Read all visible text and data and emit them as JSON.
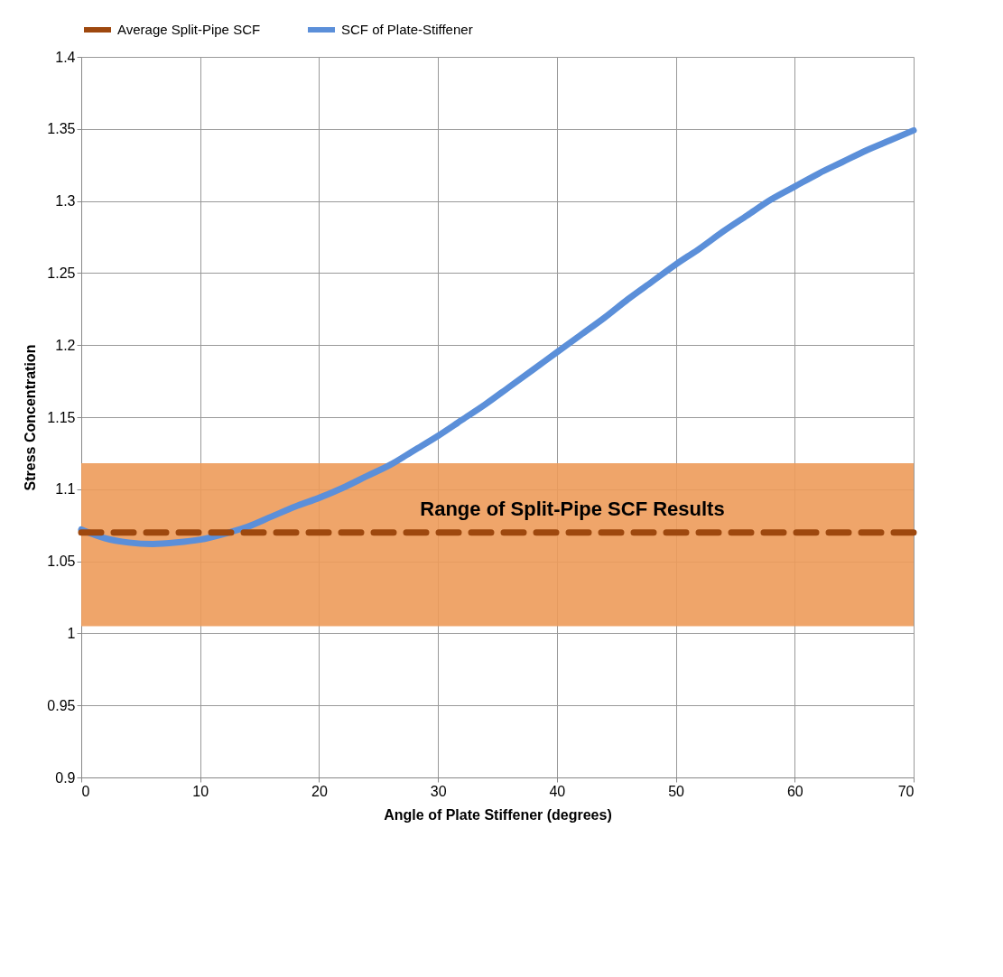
{
  "chart_data": {
    "type": "line",
    "xlabel": "Angle of Plate Stiffener (degrees)",
    "ylabel": "Stress Concentration",
    "xlim": [
      0,
      70
    ],
    "xticks": [
      0,
      10,
      20,
      30,
      40,
      50,
      60,
      70
    ],
    "ylim": [
      0.9,
      1.4
    ],
    "yticks": [
      0.9,
      0.95,
      1,
      1.05,
      1.1,
      1.15,
      1.2,
      1.25,
      1.3,
      1.35,
      1.4
    ],
    "grid": true,
    "legend": "top",
    "x": [
      0,
      2,
      4,
      6,
      8,
      10,
      12,
      14,
      16,
      18,
      20,
      22,
      24,
      26,
      28,
      30,
      32,
      34,
      36,
      38,
      40,
      42,
      44,
      46,
      48,
      50,
      52,
      54,
      56,
      58,
      60,
      62,
      64,
      66,
      68,
      70
    ],
    "series": [
      {
        "name": "SCF of Plate-Stiffener",
        "color": "#5b8fd9",
        "values": [
          1.072,
          1.066,
          1.063,
          1.062,
          1.063,
          1.065,
          1.069,
          1.074,
          1.081,
          1.088,
          1.094,
          1.101,
          1.109,
          1.117,
          1.127,
          1.137,
          1.148,
          1.159,
          1.171,
          1.183,
          1.195,
          1.207,
          1.219,
          1.232,
          1.244,
          1.256,
          1.267,
          1.279,
          1.29,
          1.301,
          1.31,
          1.319,
          1.327,
          1.335,
          1.342,
          1.349
        ]
      }
    ],
    "ref_lines": [
      {
        "axis": "y",
        "value": 1.07,
        "label": "Average Split-Pipe SCF",
        "color": "#9e480e",
        "line_style": "dashed"
      }
    ],
    "bands": [
      {
        "axis": "y",
        "from": 1.005,
        "to": 1.118,
        "color": "#ed9b5a",
        "label": "Range of Split-Pipe SCF Results"
      }
    ]
  }
}
